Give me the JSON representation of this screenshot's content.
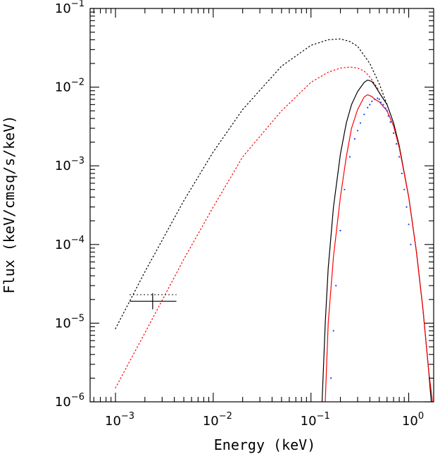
{
  "chart_data": {
    "type": "line",
    "xscale": "log",
    "yscale": "log",
    "xlim": [
      0.00055,
      1.8
    ],
    "ylim": [
      1e-06,
      0.1
    ],
    "xlabel": "Energy (keV)",
    "ylabel": "Flux (keV/cmsq/s/keV)",
    "grid": false,
    "x_tick_labels": [
      {
        "value": 0.001,
        "base": "10",
        "exp": "−3"
      },
      {
        "value": 0.01,
        "base": "10",
        "exp": "−2"
      },
      {
        "value": 0.1,
        "base": "10",
        "exp": "−1"
      },
      {
        "value": 1,
        "base": "10",
        "exp": "0"
      }
    ],
    "y_tick_labels": [
      {
        "value": 1e-06,
        "base": "10",
        "exp": "−6"
      },
      {
        "value": 1e-05,
        "base": "10",
        "exp": "−5"
      },
      {
        "value": 0.0001,
        "base": "10",
        "exp": "−4"
      },
      {
        "value": 0.001,
        "base": "10",
        "exp": "−3"
      },
      {
        "value": 0.01,
        "base": "10",
        "exp": "−2"
      },
      {
        "value": 0.1,
        "base": "10",
        "exp": "−1"
      }
    ],
    "series": [
      {
        "style": "dotted",
        "color": "#000000",
        "x": [
          0.001,
          0.002,
          0.005,
          0.01,
          0.02,
          0.05,
          0.1,
          0.15,
          0.2,
          0.25,
          0.3,
          0.4,
          0.5,
          0.6
        ],
        "y": [
          8.5e-06,
          4.5e-05,
          0.00036,
          0.0015,
          0.0052,
          0.0185,
          0.034,
          0.04,
          0.041,
          0.038,
          0.033,
          0.02,
          0.011,
          0.006
        ]
      },
      {
        "style": "dotted",
        "color": "#ff0000",
        "x": [
          0.001,
          0.002,
          0.005,
          0.01,
          0.02,
          0.05,
          0.1,
          0.15,
          0.2,
          0.25,
          0.3,
          0.35,
          0.4,
          0.5
        ],
        "y": [
          1.5e-06,
          7.5e-06,
          6.5e-05,
          0.0003,
          0.0013,
          0.005,
          0.0115,
          0.0155,
          0.0175,
          0.018,
          0.0175,
          0.016,
          0.0135,
          0.009
        ]
      },
      {
        "style": "solid",
        "color": "#000000",
        "x": [
          0.13,
          0.14,
          0.15,
          0.17,
          0.2,
          0.23,
          0.26,
          0.3,
          0.35,
          0.38,
          0.42,
          0.45,
          0.5,
          0.6,
          0.7,
          0.8,
          1.0,
          1.2,
          1.4,
          1.6,
          1.7
        ],
        "y": [
          1e-06,
          1e-05,
          5e-05,
          0.0003,
          0.0014,
          0.0035,
          0.006,
          0.0088,
          0.0115,
          0.0123,
          0.0118,
          0.0105,
          0.0085,
          0.006,
          0.0035,
          0.0018,
          0.0004,
          8e-05,
          1.5e-05,
          2.5e-06,
          1e-06
        ]
      },
      {
        "style": "solid",
        "color": "#ff0000",
        "x": [
          0.14,
          0.15,
          0.17,
          0.2,
          0.23,
          0.26,
          0.3,
          0.35,
          0.38,
          0.42,
          0.45,
          0.5,
          0.6,
          0.7,
          0.8,
          1.0,
          1.2,
          1.4,
          1.6,
          1.75
        ],
        "y": [
          1e-06,
          1e-05,
          7e-05,
          0.0004,
          0.0013,
          0.003,
          0.0052,
          0.0075,
          0.008,
          0.0076,
          0.007,
          0.0065,
          0.005,
          0.0032,
          0.0017,
          0.0004,
          8e-05,
          1.5e-05,
          2.5e-06,
          1e-06
        ]
      }
    ],
    "scatter": {
      "color": "#1a3cff",
      "x": [
        0.16,
        0.17,
        0.18,
        0.2,
        0.22,
        0.25,
        0.28,
        0.3,
        0.32,
        0.35,
        0.38,
        0.4,
        0.42,
        0.45,
        0.48,
        0.5,
        0.52,
        0.55,
        0.58,
        0.6,
        0.62,
        0.65,
        0.7,
        0.75,
        0.8,
        0.85,
        0.9,
        0.95,
        1.0,
        1.05
      ],
      "y": [
        2e-06,
        8e-06,
        3e-05,
        0.00015,
        0.0005,
        0.0013,
        0.0022,
        0.0028,
        0.0035,
        0.0045,
        0.0055,
        0.006,
        0.0066,
        0.007,
        0.0072,
        0.007,
        0.0064,
        0.006,
        0.0054,
        0.005,
        0.0043,
        0.0036,
        0.0026,
        0.0019,
        0.0013,
        0.0008,
        0.0005,
        0.0003,
        0.00018,
        0.0001
      ]
    },
    "data_point": {
      "x": 0.0024,
      "xerr_low": 0.0014,
      "xerr_high": 0.0042,
      "y": 1.9e-05,
      "yerr_low": 1.5e-05,
      "yerr_high": 2.4e-05,
      "model_y": 2.3e-05
    }
  }
}
